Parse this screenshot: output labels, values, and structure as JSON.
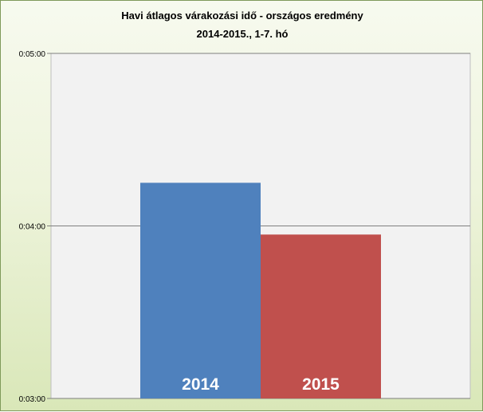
{
  "chart_data": {
    "type": "bar",
    "title": [
      "Havi átlagos várakozási idő - országos eredmény",
      "2014-2015., 1-7. hó"
    ],
    "xlabel": "",
    "ylabel": "",
    "categories": [
      "2014",
      "2015"
    ],
    "values": [
      "0:04:15",
      "0:03:57"
    ],
    "colors": [
      "#4f81bd",
      "#c0504d"
    ],
    "ylim": [
      "0:03:00",
      "0:05:00"
    ],
    "yticks": [
      "0:03:00",
      "0:04:00",
      "0:05:00"
    ],
    "grid": true,
    "legend": "none",
    "bar_labels_inside": true
  }
}
